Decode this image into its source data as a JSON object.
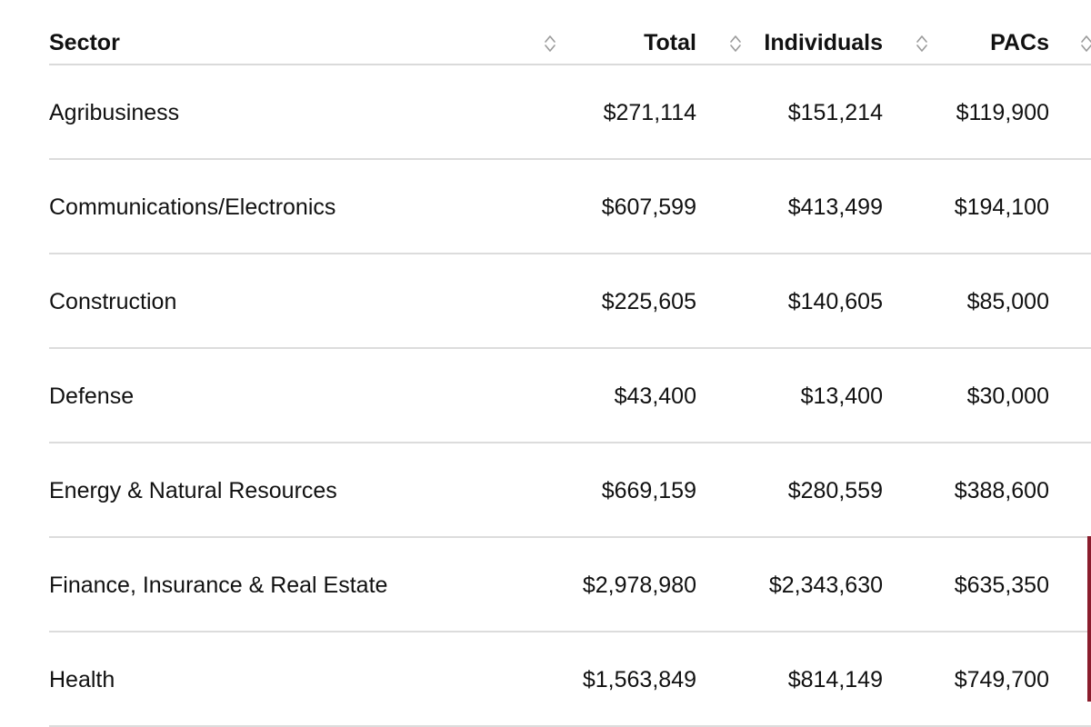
{
  "columns": {
    "sector": "Sector",
    "total": "Total",
    "individuals": "Individuals",
    "pacs": "PACs"
  },
  "rows": [
    {
      "sector": "Agribusiness",
      "total": "$271,114",
      "individuals": "$151,214",
      "pacs": "$119,900"
    },
    {
      "sector": "Communications/Electronics",
      "total": "$607,599",
      "individuals": "$413,499",
      "pacs": "$194,100"
    },
    {
      "sector": "Construction",
      "total": "$225,605",
      "individuals": "$140,605",
      "pacs": "$85,000"
    },
    {
      "sector": "Defense",
      "total": "$43,400",
      "individuals": "$13,400",
      "pacs": "$30,000"
    },
    {
      "sector": "Energy & Natural Resources",
      "total": "$669,159",
      "individuals": "$280,559",
      "pacs": "$388,600"
    },
    {
      "sector": "Finance, Insurance & Real Estate",
      "total": "$2,978,980",
      "individuals": "$2,343,630",
      "pacs": "$635,350"
    },
    {
      "sector": "Health",
      "total": "$1,563,849",
      "individuals": "$814,149",
      "pacs": "$749,700"
    }
  ],
  "colors": {
    "accent": "#8a1c2c",
    "divider": "#dcdcdc",
    "sort_icon": "#9a9a9a"
  },
  "icons": {
    "sort": "sort-icon"
  }
}
